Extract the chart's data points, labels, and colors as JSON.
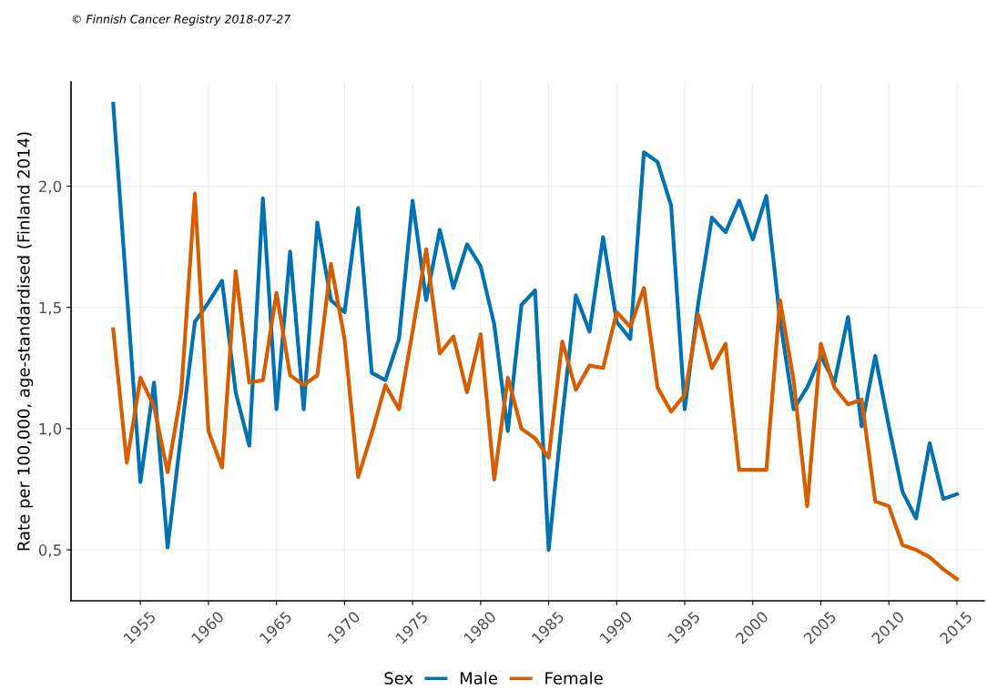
{
  "chart_data": {
    "type": "line",
    "annotations": [
      "© Finnish Cancer Registry 2018-07-27"
    ],
    "ylabel": "Rate per 100,000, age-standardised (Finland 2014)",
    "legend_title": "Sex",
    "x": [
      1953,
      1954,
      1955,
      1956,
      1957,
      1958,
      1959,
      1960,
      1961,
      1962,
      1963,
      1964,
      1965,
      1966,
      1967,
      1968,
      1969,
      1970,
      1971,
      1972,
      1973,
      1974,
      1975,
      1976,
      1977,
      1978,
      1979,
      1980,
      1981,
      1982,
      1983,
      1984,
      1985,
      1986,
      1987,
      1988,
      1989,
      1990,
      1991,
      1992,
      1993,
      1994,
      1995,
      1996,
      1997,
      1998,
      1999,
      2000,
      2001,
      2002,
      2003,
      2004,
      2005,
      2006,
      2007,
      2008,
      2009,
      2010,
      2011,
      2012,
      2013,
      2014,
      2015
    ],
    "series": [
      {
        "name": "Male",
        "color": "#0072b2",
        "values": [
          2.34,
          1.56,
          0.78,
          1.19,
          0.51,
          0.98,
          1.44,
          1.52,
          1.61,
          1.15,
          0.93,
          1.95,
          1.08,
          1.73,
          1.08,
          1.85,
          1.53,
          1.48,
          1.91,
          1.23,
          1.2,
          1.37,
          1.94,
          1.53,
          1.82,
          1.58,
          1.76,
          1.67,
          1.43,
          0.99,
          1.51,
          1.57,
          0.5,
          1.05,
          1.55,
          1.4,
          1.79,
          1.44,
          1.37,
          2.14,
          2.1,
          1.92,
          1.08,
          1.52,
          1.87,
          1.81,
          1.94,
          1.78,
          1.96,
          1.45,
          1.08,
          1.17,
          1.3,
          1.19,
          1.46,
          1.01,
          1.3,
          1.01,
          0.74,
          0.63,
          0.94,
          0.71,
          0.73
        ]
      },
      {
        "name": "Female",
        "color": "#d55e00",
        "values": [
          1.41,
          0.86,
          1.21,
          1.09,
          0.82,
          1.15,
          1.97,
          0.99,
          0.84,
          1.65,
          1.19,
          1.2,
          1.56,
          1.22,
          1.18,
          1.22,
          1.68,
          1.37,
          0.8,
          0.98,
          1.18,
          1.08,
          1.4,
          1.74,
          1.31,
          1.38,
          1.15,
          1.39,
          0.79,
          1.21,
          1.0,
          0.96,
          0.88,
          1.36,
          1.16,
          1.26,
          1.25,
          1.48,
          1.42,
          1.58,
          1.17,
          1.07,
          1.14,
          1.47,
          1.25,
          1.35,
          0.83,
          0.83,
          0.83,
          1.53,
          1.2,
          0.68,
          1.35,
          1.17,
          1.1,
          1.12,
          0.7,
          0.68,
          0.52,
          0.5,
          0.47,
          0.42,
          0.38
        ]
      }
    ],
    "xlim": [
      1949.9,
      2017
    ],
    "xticks": [
      1955,
      1960,
      1965,
      1970,
      1975,
      1980,
      1985,
      1990,
      1995,
      2000,
      2005,
      2010,
      2015
    ],
    "ylim": [
      0.29,
      2.43
    ],
    "yticks": [
      {
        "value": 0.5,
        "label": "0,5"
      },
      {
        "value": 1.0,
        "label": "1,0"
      },
      {
        "value": 1.5,
        "label": "1,5"
      },
      {
        "value": 2.0,
        "label": "2,0"
      }
    ],
    "grid": true,
    "legend": "bottom",
    "line_style": "solid",
    "marker": "none"
  }
}
